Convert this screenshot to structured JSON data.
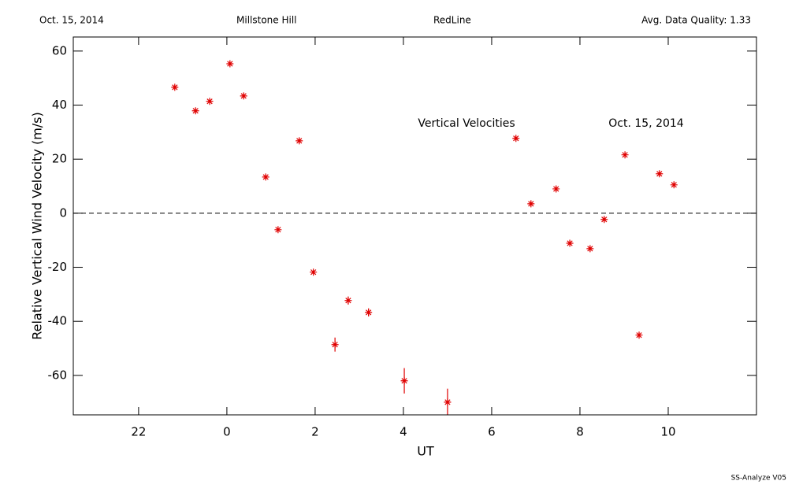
{
  "chart_data": {
    "type": "scatter",
    "header": {
      "date": "Oct. 15, 2014",
      "site": "Millstone Hill",
      "emission": "RedLine",
      "quality": "Avg. Data Quality: 1.33"
    },
    "xlabel": "UT",
    "ylabel": "Relative Vertical Wind Velocity (m/s)",
    "footer": "SS-Analyze V05",
    "annotations": [
      "Vertical Velocities",
      "Oct. 15, 2014"
    ],
    "xlim": [
      -3.48,
      12.0
    ],
    "ylim": [
      -74.6,
      65.2
    ],
    "xticks": [
      {
        "value": -2,
        "label": "22"
      },
      0,
      2,
      4,
      6,
      8,
      10
    ],
    "yticks": [
      -60,
      -40,
      -20,
      0,
      20,
      40,
      60
    ],
    "zero_line": 0,
    "color": "#e00000",
    "x": [
      -1.18,
      -0.71,
      -0.39,
      0.07,
      0.38,
      0.88,
      1.16,
      1.64,
      1.96,
      2.45,
      2.75,
      3.21,
      4.02,
      5.0,
      6.55,
      6.89,
      7.46,
      7.77,
      8.23,
      8.55,
      9.02,
      9.34,
      9.8,
      10.13
    ],
    "values": [
      46.6,
      37.9,
      41.4,
      55.3,
      43.4,
      13.4,
      -6.1,
      26.8,
      -21.8,
      -48.6,
      -32.3,
      -36.7,
      -62.0,
      -69.9,
      27.7,
      3.5,
      9.0,
      -11.1,
      -13.1,
      -2.3,
      21.6,
      -45.1,
      14.6,
      10.5
    ],
    "errors": [
      0.8,
      0.8,
      0.8,
      0.8,
      0.8,
      0.8,
      0.8,
      0.8,
      0.8,
      2.6,
      1.5,
      1.5,
      4.7,
      5.0,
      0.8,
      0.8,
      0.8,
      0.8,
      0.8,
      0.8,
      0.8,
      0.8,
      0.8,
      0.8
    ]
  }
}
